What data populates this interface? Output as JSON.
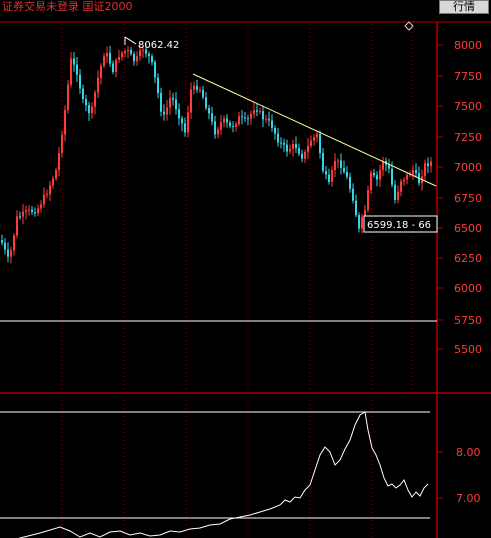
{
  "header": {
    "status_text": "证券交易未登录  国证2000",
    "quote_button": "行情"
  },
  "main_chart": {
    "y_labels": [
      "8000",
      "7750",
      "7500",
      "7250",
      "7000",
      "6750",
      "6500",
      "6250",
      "6000",
      "5750",
      "5500"
    ],
    "high_label": "8062.42",
    "low_label": "6599.18 - 66"
  },
  "indicator": {
    "y_labels": [
      "8.00",
      "7.00"
    ]
  },
  "colors": {
    "up": "#ff3b3b",
    "down": "#33d6e6",
    "trendline": "#ffff99",
    "axis": "#b00000"
  }
}
